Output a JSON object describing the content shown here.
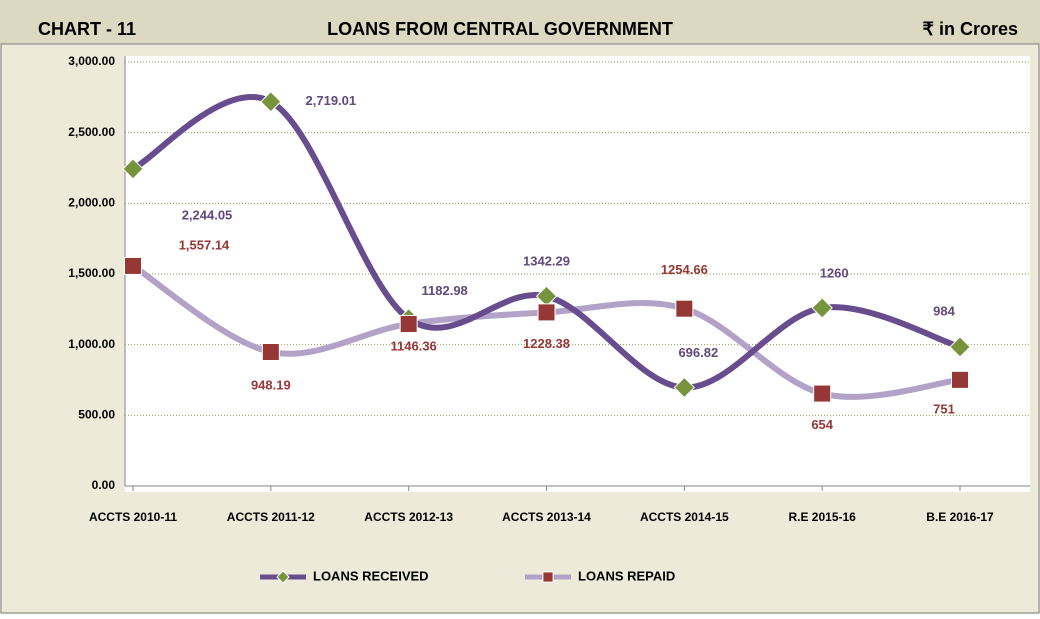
{
  "chart_data": {
    "type": "line",
    "header": {
      "left": "CHART - 11",
      "unit": "₹ in Crores"
    },
    "title": "LOANS FROM CENTRAL GOVERNMENT",
    "categories": [
      "ACCTS 2010-11",
      "ACCTS 2011-12",
      "ACCTS 2012-13",
      "ACCTS 2013-14",
      "ACCTS 2014-15",
      "R.E 2015-16",
      "B.E 2016-17"
    ],
    "series": [
      {
        "name": "LOANS RECEIVED",
        "color": "#674d8d",
        "marker_color": "#77933c",
        "marker": "diamond",
        "label_color": "#60497a",
        "values": [
          2244.05,
          2719.01,
          1182.98,
          1342.29,
          696.82,
          1260,
          984
        ],
        "value_labels": [
          "2,244.05",
          "2,719.01",
          "1182.98",
          "1342.29",
          "696.82",
          "1260",
          "984"
        ]
      },
      {
        "name": "LOANS REPAID",
        "color": "#b3a2c7",
        "marker_color": "#953735",
        "marker": "square",
        "label_color": "#953735",
        "values": [
          1557.14,
          948.19,
          1146.36,
          1228.38,
          1254.66,
          654,
          751
        ],
        "value_labels": [
          "1,557.14",
          "948.19",
          "1146.36",
          "1228.38",
          "1254.66",
          "654",
          "751"
        ]
      }
    ],
    "ylim": [
      0,
      3000
    ],
    "yticks": [
      {
        "value": 0,
        "label": "0.00"
      },
      {
        "value": 500,
        "label": "500.00"
      },
      {
        "value": 1000,
        "label": "1,000.00"
      },
      {
        "value": 1500,
        "label": "1,500.00"
      },
      {
        "value": 2000,
        "label": "2,000.00"
      },
      {
        "value": 2500,
        "label": "2,500.00"
      },
      {
        "value": 3000,
        "label": "3,000.00"
      }
    ],
    "grid": true,
    "legend": "bottom"
  }
}
